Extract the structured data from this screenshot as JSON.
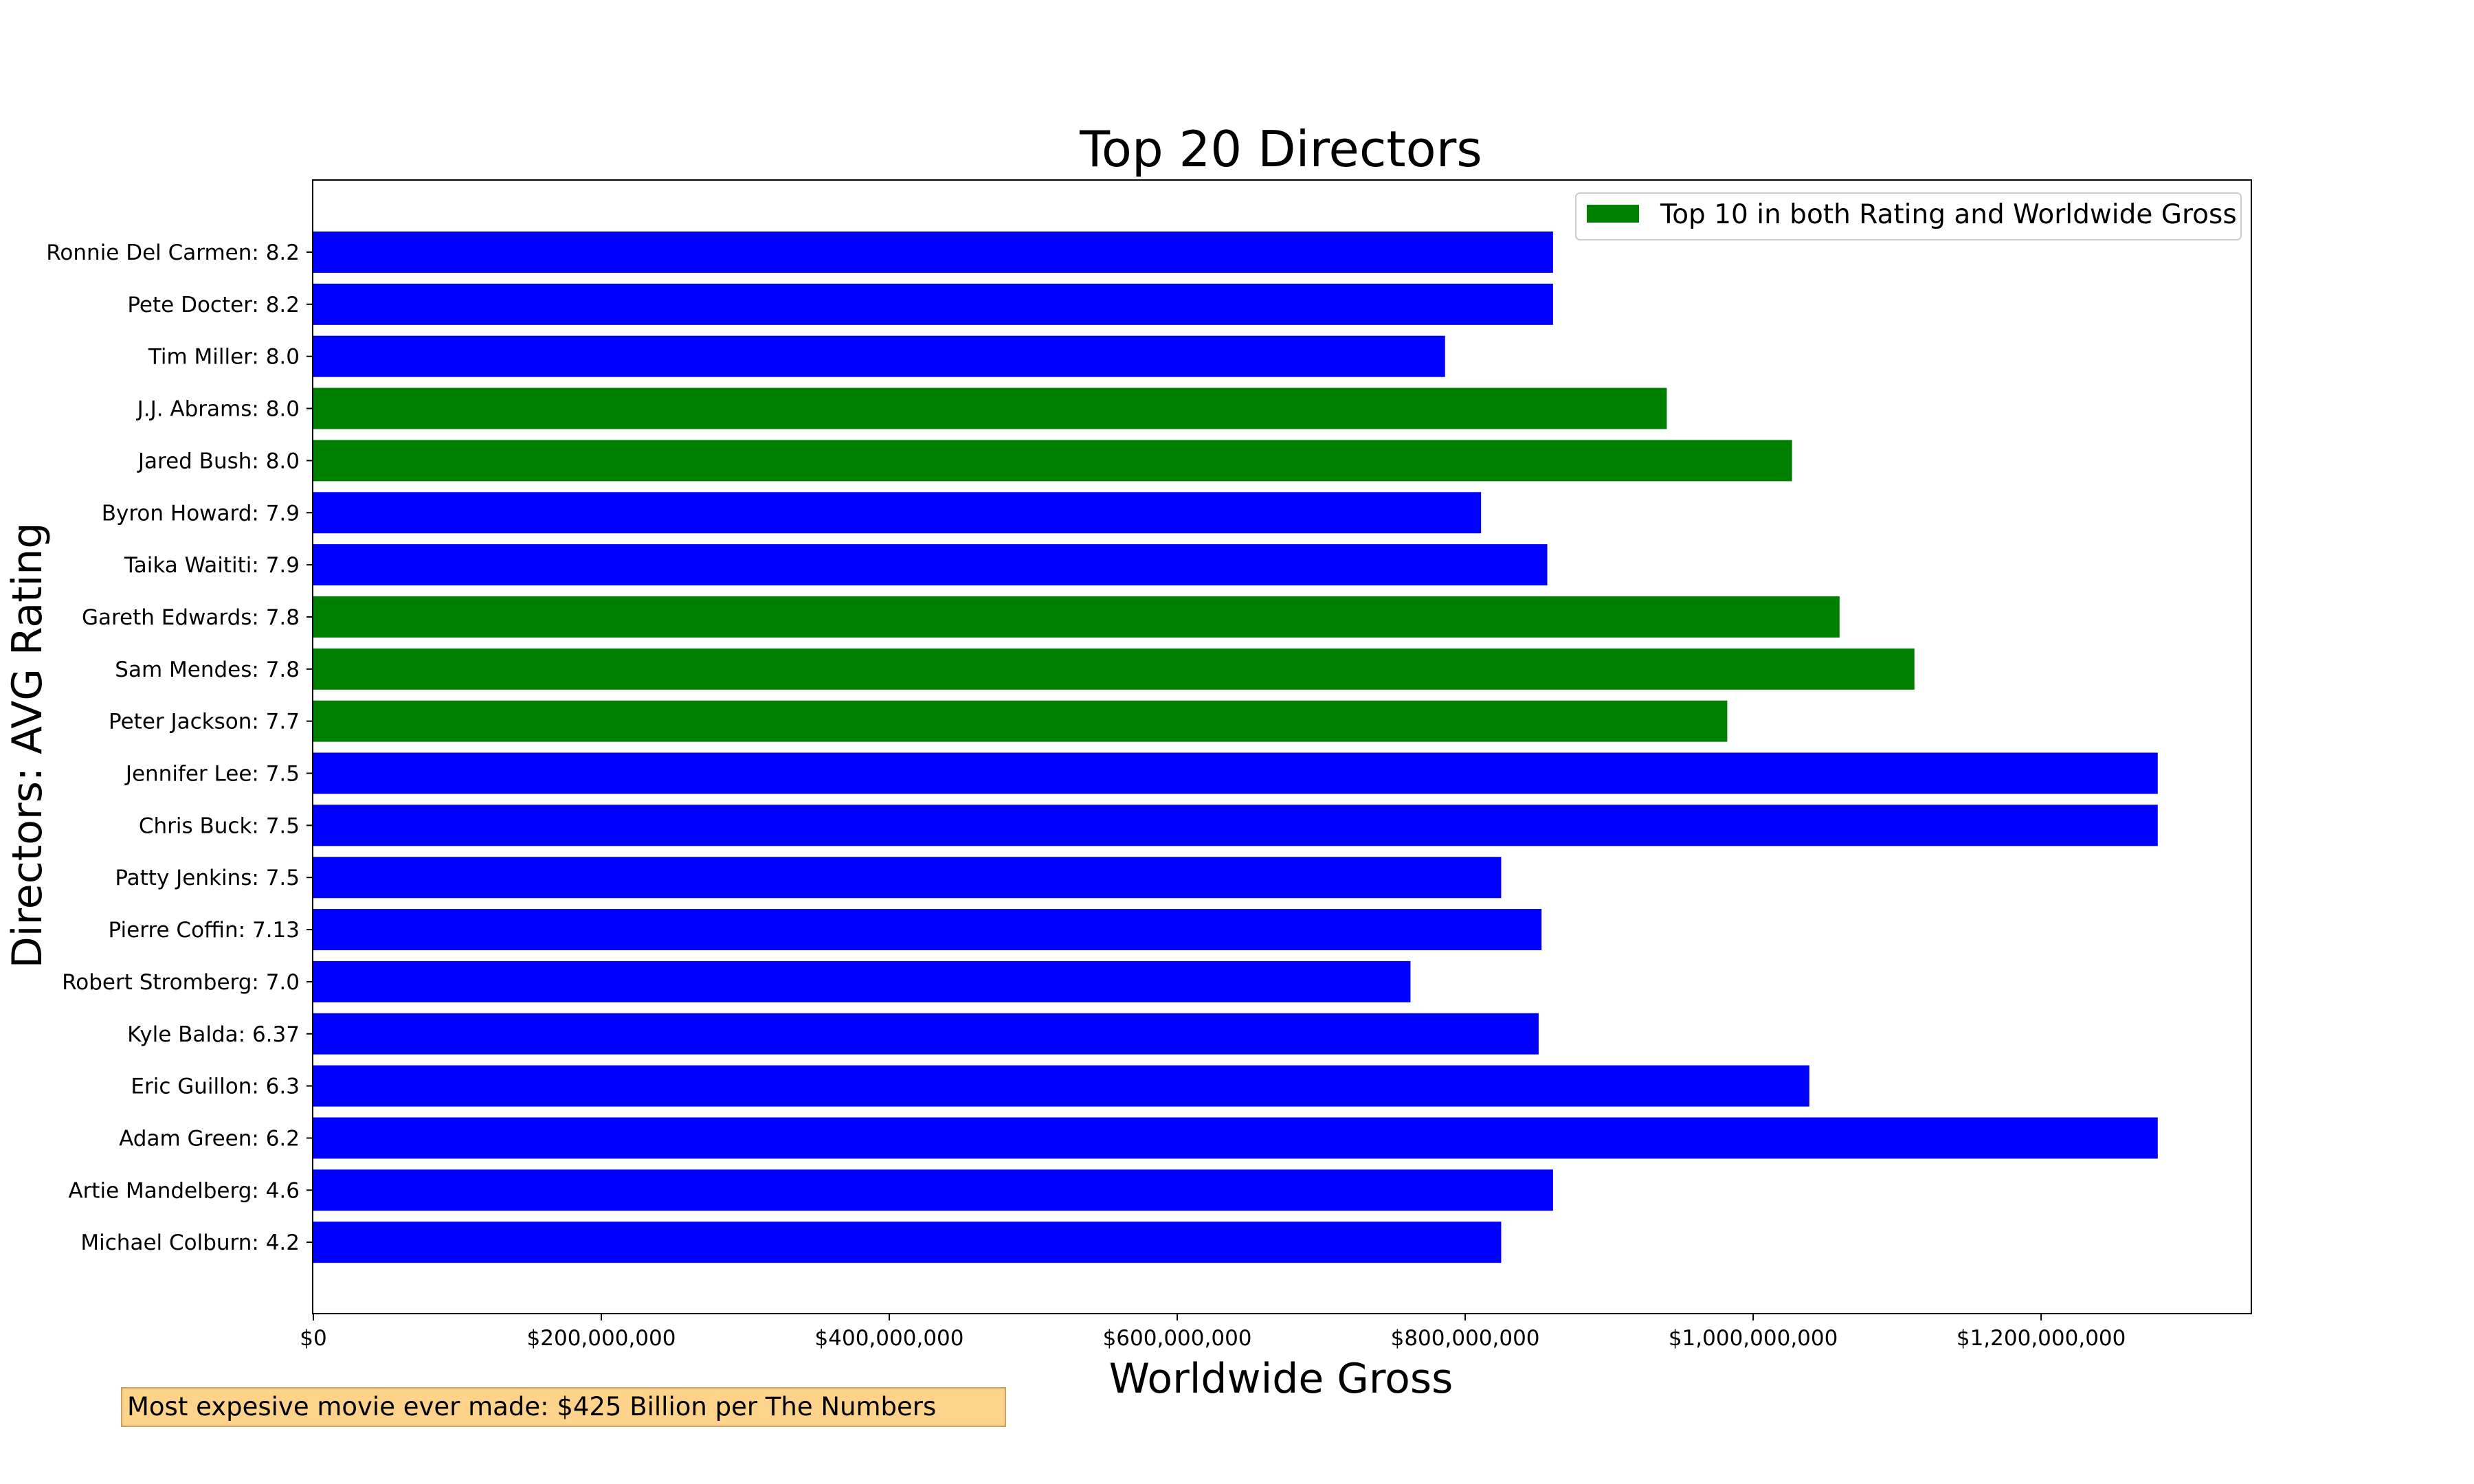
{
  "chart_data": {
    "type": "bar",
    "orientation": "horizontal",
    "title": "Top 20 Directors",
    "xlabel": "Worldwide Gross",
    "ylabel": "Directors: AVG Rating",
    "xlim": [
      0,
      1346000000
    ],
    "xticks": [
      0,
      200000000,
      400000000,
      600000000,
      800000000,
      1000000000,
      1200000000
    ],
    "xtick_labels": [
      "$0",
      "$200,000,000",
      "$400,000,000",
      "$600,000,000",
      "$800,000,000",
      "$1,000,000,000",
      "$1,200,000,000"
    ],
    "categories": [
      "Ronnie Del Carmen: 8.2",
      "Pete Docter: 8.2",
      "Tim Miller: 8.0",
      "J.J. Abrams: 8.0",
      "Jared Bush: 8.0",
      "Byron Howard: 7.9",
      "Taika Waititi: 7.9",
      "Gareth Edwards: 7.8",
      "Sam Mendes: 7.8",
      "Peter Jackson: 7.7",
      "Jennifer Lee: 7.5",
      "Chris Buck: 7.5",
      "Patty Jenkins: 7.5",
      "Pierre Coffin: 7.13",
      "Robert Stromberg: 7.0",
      "Kyle Balda: 6.37",
      "Eric Guillon: 6.3",
      "Adam Green: 6.2",
      "Artie Mandelberg: 4.6",
      "Michael Colburn: 4.2"
    ],
    "values": [
      861000000,
      861000000,
      786000000,
      940000000,
      1027000000,
      811000000,
      857000000,
      1060000000,
      1112000000,
      982000000,
      1281000000,
      1281000000,
      825000000,
      853000000,
      762000000,
      851000000,
      1039000000,
      1281000000,
      861000000,
      825000000
    ],
    "highlight": [
      false,
      false,
      false,
      true,
      true,
      false,
      false,
      true,
      true,
      true,
      false,
      false,
      false,
      false,
      false,
      false,
      false,
      false,
      false,
      false
    ],
    "colors": {
      "default": "#0000ff",
      "highlight": "#008000"
    },
    "legend": {
      "label": "Top 10 in both Rating and Worldwide Gross",
      "placement": "top-right"
    },
    "grid": false
  },
  "annotation": {
    "text": "Most expesive movie ever made: $425 Billion per The Numbers"
  }
}
